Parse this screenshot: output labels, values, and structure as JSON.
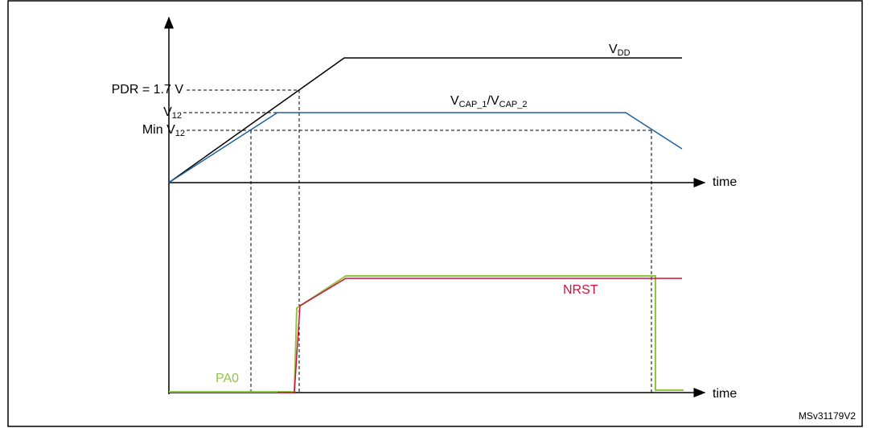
{
  "labels": {
    "pdr": "PDR = 1.7 V",
    "v12": {
      "main": "V",
      "sub": "12"
    },
    "min_v12": {
      "main": "Min V",
      "sub": "12"
    },
    "vdd": {
      "main": "V",
      "sub": "DD"
    },
    "vcap": {
      "main1": "V",
      "sub1": "CAP_1",
      "main2": "/V",
      "sub2": "CAP_2"
    },
    "time_top": "time",
    "time_bottom": "time",
    "nrst": "NRST",
    "pa0": "PA0",
    "ref": "MSv31179V2"
  }
}
